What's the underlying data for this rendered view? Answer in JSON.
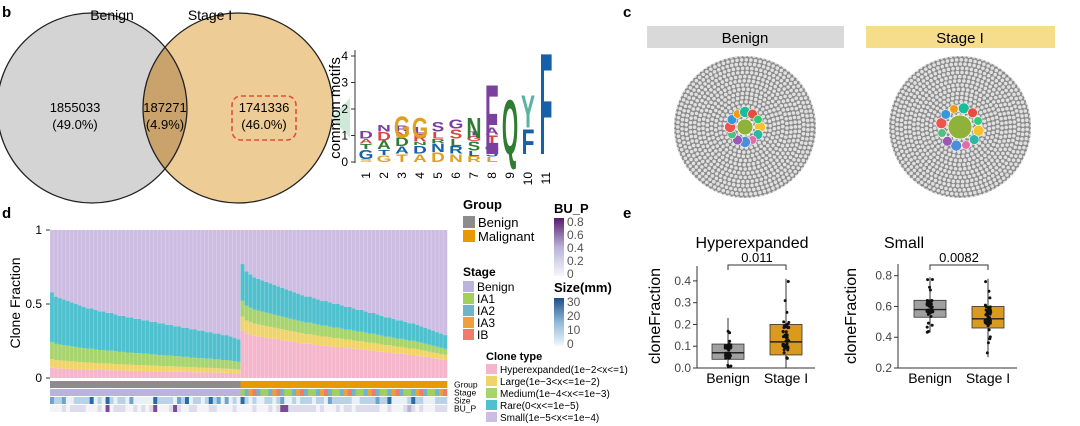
{
  "panel_labels": {
    "b": "b",
    "c": "c",
    "d": "d",
    "e": "e"
  },
  "chart_data": [
    {
      "type": "venn",
      "sets": [
        "Benign",
        "Stage I"
      ],
      "regions": [
        {
          "value": "1855033",
          "percent": "(49.0%)"
        },
        {
          "value": "187271",
          "percent": "(4.9%)"
        },
        {
          "value": "1741336",
          "percent": "(46.0%)"
        }
      ],
      "colors": {
        "benign": "#d4d4d4",
        "stage": "#edcd95",
        "overlap": "#c9a36b",
        "highlight": "#e74c3c"
      }
    },
    {
      "type": "sequence-logo",
      "ylabel": "common motifs",
      "yticks": [
        0,
        1,
        2,
        3,
        4
      ],
      "positions": [
        "1",
        "2",
        "3",
        "4",
        "5",
        "6",
        "7",
        "8",
        "9",
        "10",
        "11"
      ],
      "letters": [
        {
          "pos": 3,
          "letter": "G",
          "height": 0.9,
          "color": "#e0a020"
        },
        {
          "pos": 4,
          "letter": "G",
          "height": 0.8,
          "color": "#e0a020"
        },
        {
          "pos": 7,
          "letter": "N",
          "height": 0.8,
          "color": "#2e7d32"
        },
        {
          "pos": 8,
          "letter": "E",
          "height": 2.8,
          "color": "#7b3fa0"
        },
        {
          "pos": 9,
          "letter": "Q",
          "height": 2.2,
          "color": "#2e7d32"
        },
        {
          "pos": 10,
          "letter": "F",
          "height": 1.0,
          "color": "#1560a8"
        },
        {
          "pos": 10,
          "letter": "Y",
          "height": 1.3,
          "color": "#59b3a0"
        },
        {
          "pos": 11,
          "letter": "F",
          "height": 4.1,
          "color": "#1560a8"
        }
      ]
    },
    {
      "type": "bubble-packing",
      "panels": [
        {
          "title": "Benign",
          "header_color": "#d9d9d9"
        },
        {
          "title": "Stage I",
          "header_color": "#f6dd8c"
        }
      ]
    },
    {
      "type": "stacked-bar",
      "ylabel": "Clone Fraction",
      "yticks": [
        0,
        0.5,
        1
      ],
      "n_benign": 48,
      "n_malignant": 52,
      "series_colors": {
        "Hyperexpanded": "#f5b6cc",
        "Large": "#f0d46a",
        "Medium": "#a8d46e",
        "Rare": "#4fc0ce",
        "Small": "#cdbde3"
      },
      "benign_totals": [
        0.58,
        0.55,
        0.54,
        0.53,
        0.52,
        0.51,
        0.5,
        0.49,
        0.48,
        0.47,
        0.47,
        0.46,
        0.45,
        0.45,
        0.44,
        0.44,
        0.43,
        0.42,
        0.42,
        0.41,
        0.41,
        0.4,
        0.4,
        0.39,
        0.39,
        0.38,
        0.38,
        0.37,
        0.37,
        0.36,
        0.36,
        0.35,
        0.35,
        0.34,
        0.34,
        0.33,
        0.33,
        0.32,
        0.32,
        0.31,
        0.31,
        0.3,
        0.3,
        0.29,
        0.29,
        0.28,
        0.27,
        0.26
      ],
      "malignant_totals": [
        0.77,
        0.72,
        0.7,
        0.68,
        0.67,
        0.66,
        0.65,
        0.64,
        0.63,
        0.62,
        0.61,
        0.6,
        0.59,
        0.58,
        0.57,
        0.56,
        0.55,
        0.55,
        0.54,
        0.53,
        0.52,
        0.52,
        0.51,
        0.5,
        0.5,
        0.49,
        0.48,
        0.48,
        0.47,
        0.46,
        0.46,
        0.45,
        0.44,
        0.44,
        0.43,
        0.42,
        0.41,
        0.41,
        0.4,
        0.39,
        0.39,
        0.38,
        0.37,
        0.37,
        0.36,
        0.35,
        0.34,
        0.33,
        0.32,
        0.31,
        0.3,
        0.29
      ],
      "annotation_rows": [
        "Group",
        "Stage",
        "Size",
        "BU_P"
      ],
      "legend": {
        "group": {
          "title": "Group",
          "items": [
            "Benign",
            "Malignant"
          ],
          "colors": [
            "#8c8c8c",
            "#e69a00"
          ]
        },
        "stage": {
          "title": "Stage",
          "items": [
            "Benign",
            "IA1",
            "IA2",
            "IA3",
            "IB"
          ],
          "colors": [
            "#b9b3dd",
            "#a3cf5c",
            "#6fb3cf",
            "#f0a03a",
            "#ef7b6a"
          ]
        },
        "bu_p": {
          "title": "BU_P",
          "ticks": [
            "0.8",
            "0.6",
            "0.4",
            "0.2",
            "0"
          ]
        },
        "size": {
          "title": "Size(mm)",
          "ticks": [
            "30",
            "20",
            "10",
            "0"
          ]
        },
        "clone_type": {
          "title": "Clone type",
          "items": [
            "Hyperexpanded(1e−2<x<=1)",
            "Large(1e−3<x<=1e−2)",
            "Medium(1e−4<x<=1e−3)",
            "Rare(0<x<=1e−5)",
            "Small(1e−5<x<=1e−4)"
          ]
        }
      }
    },
    {
      "type": "boxplot",
      "title": "Hyperexpanded",
      "ylabel": "cloneFraction",
      "categories": [
        "Benign",
        "Stage I"
      ],
      "yticks": [
        0.0,
        0.1,
        0.2,
        0.3,
        0.4
      ],
      "ylim": [
        0.0,
        0.45
      ],
      "pvalue": "0.011",
      "colors": [
        "#a0a0a0",
        "#d89b1e"
      ],
      "boxes": [
        {
          "min": 0.0,
          "q1": 0.04,
          "median": 0.07,
          "q3": 0.11,
          "max": 0.23
        },
        {
          "min": 0.0,
          "q1": 0.06,
          "median": 0.12,
          "q3": 0.2,
          "max": 0.41
        }
      ]
    },
    {
      "type": "boxplot",
      "title": "Small",
      "ylabel": "cloneFraction",
      "categories": [
        "Benign",
        "Stage I"
      ],
      "yticks": [
        0.2,
        0.4,
        0.6,
        0.8
      ],
      "ylim": [
        0.2,
        0.85
      ],
      "pvalue": "0.0082",
      "colors": [
        "#a0a0a0",
        "#d89b1e"
      ],
      "boxes": [
        {
          "min": 0.43,
          "q1": 0.53,
          "median": 0.58,
          "q3": 0.64,
          "max": 0.79
        },
        {
          "min": 0.27,
          "q1": 0.46,
          "median": 0.52,
          "q3": 0.6,
          "max": 0.78
        }
      ]
    }
  ]
}
